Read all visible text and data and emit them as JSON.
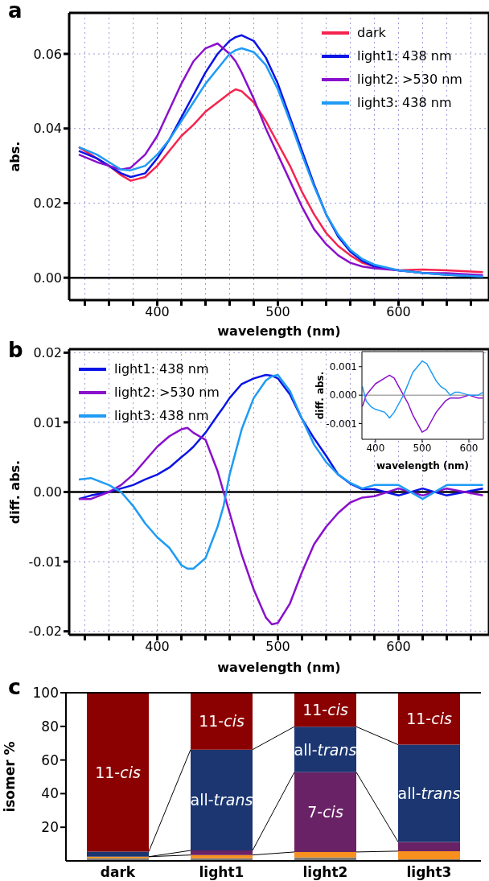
{
  "chart_data": [
    {
      "type": "line",
      "title": "a",
      "xlabel": "wavelength (nm)",
      "ylabel": "abs.",
      "xlim": [
        327,
        675
      ],
      "ylim": [
        -0.006,
        0.071
      ],
      "xticks": [
        {
          "value": 340,
          "label": null
        },
        {
          "value": 360,
          "label": null
        },
        {
          "value": 380,
          "label": null
        },
        400,
        {
          "value": 420,
          "label": null
        },
        {
          "value": 440,
          "label": null
        },
        {
          "value": 460,
          "label": null
        },
        {
          "value": 480,
          "label": null
        },
        500,
        {
          "value": 520,
          "label": null
        },
        {
          "value": 540,
          "label": null
        },
        {
          "value": 560,
          "label": null
        },
        {
          "value": 580,
          "label": null
        },
        600,
        {
          "value": 620,
          "label": null
        },
        {
          "value": 640,
          "label": null
        },
        {
          "value": 660,
          "label": null
        }
      ],
      "yticks": [
        {
          "value": 0,
          "label": "0.00"
        },
        {
          "value": 0.02,
          "label": "0.02"
        },
        {
          "value": 0.04,
          "label": "0.04"
        },
        {
          "value": 0.06,
          "label": "0.06"
        }
      ],
      "grid": true,
      "legend": "top right",
      "ref_lines": [
        {
          "axis": "y",
          "value": 0,
          "color": "#000000"
        }
      ],
      "x": [
        335,
        350,
        360,
        370,
        378,
        390,
        400,
        410,
        420,
        430,
        440,
        450,
        460,
        465,
        470,
        480,
        490,
        500,
        510,
        520,
        530,
        540,
        550,
        560,
        570,
        580,
        600,
        620,
        640,
        670
      ],
      "series": [
        {
          "name": "dark",
          "color": "#f5234e",
          "values": [
            0.035,
            0.032,
            0.03,
            0.0275,
            0.026,
            0.027,
            0.03,
            0.034,
            0.038,
            0.041,
            0.0445,
            0.047,
            0.0495,
            0.0505,
            0.05,
            0.047,
            0.042,
            0.036,
            0.03,
            0.023,
            0.017,
            0.012,
            0.0085,
            0.006,
            0.004,
            0.003,
            0.002,
            0.0022,
            0.002,
            0.0015
          ]
        },
        {
          "name": "light1: 438 nm",
          "color": "#0a14e6",
          "values": [
            0.034,
            0.032,
            0.03,
            0.028,
            0.027,
            0.028,
            0.032,
            0.037,
            0.043,
            0.049,
            0.055,
            0.06,
            0.0635,
            0.0645,
            0.065,
            0.0635,
            0.059,
            0.052,
            0.043,
            0.034,
            0.025,
            0.017,
            0.011,
            0.007,
            0.0045,
            0.003,
            0.002,
            0.0013,
            0.0008,
            0.0003
          ]
        },
        {
          "name": "light2: >530 nm",
          "color": "#8a10cc",
          "values": [
            0.033,
            0.031,
            0.03,
            0.029,
            0.0295,
            0.033,
            0.038,
            0.045,
            0.052,
            0.058,
            0.0615,
            0.0628,
            0.06,
            0.058,
            0.055,
            0.048,
            0.04,
            0.033,
            0.026,
            0.019,
            0.013,
            0.009,
            0.006,
            0.004,
            0.003,
            0.0025,
            0.002,
            0.0013,
            0.0012,
            0.0007
          ]
        },
        {
          "name": "light3: 438 nm",
          "color": "#1e9bf5",
          "values": [
            0.035,
            0.033,
            0.031,
            0.029,
            0.0288,
            0.03,
            0.033,
            0.037,
            0.042,
            0.047,
            0.052,
            0.056,
            0.06,
            0.061,
            0.0615,
            0.0605,
            0.057,
            0.0505,
            0.042,
            0.033,
            0.0245,
            0.017,
            0.0115,
            0.0075,
            0.005,
            0.0035,
            0.002,
            0.0013,
            0.0008,
            0.0003
          ]
        }
      ]
    },
    {
      "type": "line",
      "title": "b",
      "xlabel": "wavelength (nm)",
      "ylabel": "diff. abs.",
      "xlim": [
        327,
        675
      ],
      "ylim": [
        -0.0205,
        0.0205
      ],
      "xticks": [
        {
          "value": 340,
          "label": null
        },
        {
          "value": 360,
          "label": null
        },
        {
          "value": 380,
          "label": null
        },
        400,
        {
          "value": 420,
          "label": null
        },
        {
          "value": 440,
          "label": null
        },
        {
          "value": 460,
          "label": null
        },
        {
          "value": 480,
          "label": null
        },
        500,
        {
          "value": 520,
          "label": null
        },
        {
          "value": 540,
          "label": null
        },
        {
          "value": 560,
          "label": null
        },
        {
          "value": 580,
          "label": null
        },
        600,
        {
          "value": 620,
          "label": null
        },
        {
          "value": 640,
          "label": null
        },
        {
          "value": 660,
          "label": null
        }
      ],
      "yticks": [
        {
          "value": -0.02,
          "label": "-0.02"
        },
        {
          "value": -0.01,
          "label": "-0.01"
        },
        {
          "value": 0,
          "label": "0.00"
        },
        {
          "value": 0.01,
          "label": "0.01"
        },
        {
          "value": 0.02,
          "label": "0.02"
        }
      ],
      "grid": true,
      "legend": "top left",
      "ref_lines": [
        {
          "axis": "y",
          "value": 0,
          "color": "#000000"
        }
      ],
      "x": [
        335,
        345,
        360,
        370,
        380,
        390,
        400,
        410,
        420,
        425,
        430,
        440,
        450,
        455,
        460,
        470,
        480,
        490,
        495,
        500,
        510,
        520,
        530,
        540,
        550,
        560,
        570,
        580,
        600,
        620,
        640,
        670
      ],
      "series": [
        {
          "name": "light1: 438 nm",
          "color": "#0a14e6",
          "values": [
            -0.001,
            -0.0005,
            0.0,
            0.0005,
            0.001,
            0.0018,
            0.0025,
            0.0035,
            0.005,
            0.0057,
            0.0065,
            0.0085,
            0.011,
            0.0122,
            0.0135,
            0.0155,
            0.0163,
            0.0168,
            0.0167,
            0.0163,
            0.014,
            0.0105,
            0.0077,
            0.0052,
            0.0025,
            0.0012,
            0.0004,
            0.0004,
            -0.0005,
            0.0005,
            -0.0005,
            0.0005
          ]
        },
        {
          "name": "light2: >530 nm",
          "color": "#8a10cc",
          "values": [
            -0.001,
            -0.001,
            0.0,
            0.001,
            0.0025,
            0.0045,
            0.0065,
            0.008,
            0.009,
            0.0092,
            0.0085,
            0.0075,
            0.003,
            0.0,
            -0.003,
            -0.009,
            -0.014,
            -0.018,
            -0.019,
            -0.0188,
            -0.016,
            -0.0115,
            -0.0075,
            -0.005,
            -0.003,
            -0.0015,
            -0.0008,
            -0.0006,
            0.0005,
            -0.0005,
            0.0005,
            -0.0005
          ]
        },
        {
          "name": "light3: 438 nm",
          "color": "#1e9bf5",
          "values": [
            0.0018,
            0.002,
            0.001,
            0.0,
            -0.002,
            -0.0045,
            -0.0065,
            -0.008,
            -0.0105,
            -0.011,
            -0.011,
            -0.0095,
            -0.005,
            -0.002,
            0.0025,
            0.009,
            0.0135,
            0.016,
            0.0166,
            0.0168,
            0.0145,
            0.0105,
            0.0068,
            0.0043,
            0.0025,
            0.0013,
            0.0005,
            0.001,
            0.001,
            -0.001,
            0.001,
            0.001
          ]
        }
      ]
    },
    {
      "type": "line",
      "xlabel": "wavelength (nm)",
      "ylabel": "diff. abs.",
      "xlim": [
        371,
        631
      ],
      "ylim": [
        -0.00155,
        0.00153
      ],
      "xticks": [
        400,
        500,
        600
      ],
      "yticks": [
        {
          "value": -0.001,
          "label": "-0.001"
        },
        {
          "value": 0,
          "label": "0.000"
        },
        {
          "value": 0.001,
          "label": "0.001"
        }
      ],
      "ref_lines": [
        {
          "axis": "y",
          "value": 0,
          "color": "#808080"
        }
      ],
      "x": [
        372,
        380,
        390,
        400,
        420,
        430,
        440,
        450,
        460,
        470,
        480,
        490,
        500,
        510,
        520,
        530,
        540,
        550,
        560,
        570,
        580,
        600,
        620,
        630
      ],
      "series": [
        {
          "color": "#8a10cc",
          "values": [
            -0.0004,
            0.0,
            0.0002,
            0.0004,
            0.0006,
            0.0007,
            0.0006,
            0.0003,
            0.0,
            -0.0003,
            -0.0007,
            -0.001,
            -0.0013,
            -0.0012,
            -0.0009,
            -0.0006,
            -0.0004,
            -0.0002,
            -0.0001,
            -0.0001,
            -0.0001,
            0.0,
            -0.0001,
            -0.0001
          ]
        },
        {
          "color": "#1e9bf5",
          "values": [
            0.0003,
            -0.0002,
            -0.0004,
            -0.0005,
            -0.0006,
            -0.0008,
            -0.0006,
            -0.0003,
            0.0,
            0.0004,
            0.0008,
            0.001,
            0.0012,
            0.0011,
            0.0008,
            0.0005,
            0.0003,
            0.0002,
            0.0,
            0.0001,
            0.0001,
            0.0,
            0.0,
            0.0001
          ]
        }
      ]
    },
    {
      "type": "bar",
      "title": "c",
      "ylabel": "isomer %",
      "stacked": true,
      "categories": [
        "dark",
        "light1",
        "light2",
        "light3"
      ],
      "ylim": [
        0,
        100
      ],
      "yticks": [
        20,
        40,
        60,
        80,
        100
      ],
      "series": [
        {
          "color": "#777777",
          "values": [
            1.5,
            1.5,
            2,
            1
          ]
        },
        {
          "color": "#f7901e",
          "values": [
            1,
            2,
            3.3,
            4.8
          ]
        },
        {
          "name": "7-cis",
          "color": "#6a2266",
          "values": [
            0,
            2.7,
            47.4,
            5.5
          ]
        },
        {
          "name": "all-trans",
          "color": "#1b3671",
          "values": [
            3,
            60,
            27.1,
            57.8
          ]
        },
        {
          "name": "11-cis",
          "color": "#8b0000",
          "values": [
            94.5,
            33.8,
            20.2,
            30.9
          ]
        }
      ]
    }
  ]
}
